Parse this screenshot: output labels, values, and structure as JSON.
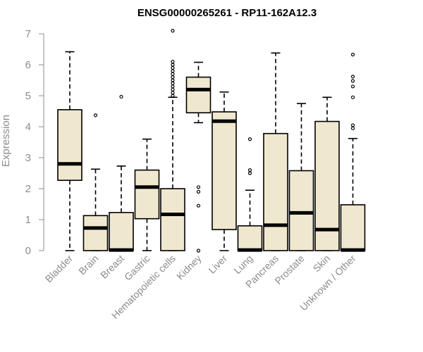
{
  "chart_data": {
    "type": "boxplot",
    "title": "ENSG00000265261 - RP11-162A12.3",
    "xlabel": "",
    "ylabel": "Expression",
    "ylim": [
      0,
      7
    ],
    "yticks": [
      0,
      1,
      2,
      3,
      4,
      5,
      6,
      7
    ],
    "box_color": "#efe8cf",
    "categories": [
      "Bladder",
      "Brain",
      "Breast",
      "Gastric",
      "Hematopoietic cells",
      "Kidney",
      "Liver",
      "Lung",
      "Pancreas",
      "Prostate",
      "Skin",
      "Unknown / Other"
    ],
    "boxes": [
      {
        "min": 0,
        "q1": 2.27,
        "median": 2.8,
        "q3": 4.55,
        "max": 6.42,
        "outliers": []
      },
      {
        "min": 0,
        "q1": 0,
        "median": 0.73,
        "q3": 1.13,
        "max": 2.63,
        "outliers": [
          4.37
        ]
      },
      {
        "min": 0,
        "q1": 0,
        "median": 0.02,
        "q3": 1.23,
        "max": 2.73,
        "outliers": [
          4.97
        ]
      },
      {
        "min": 0,
        "q1": 1.03,
        "median": 2.05,
        "q3": 2.6,
        "max": 3.6,
        "outliers": []
      },
      {
        "min": 0,
        "q1": 0,
        "median": 1.17,
        "q3": 2.0,
        "max": 4.95,
        "outliers": [
          5.0,
          5.1,
          5.2,
          5.3,
          5.4,
          5.5,
          5.6,
          5.7,
          5.8,
          5.9,
          6.0,
          6.1,
          7.1
        ]
      },
      {
        "min": 4.13,
        "q1": 4.45,
        "median": 5.2,
        "q3": 5.6,
        "max": 6.08,
        "outliers": [
          2.05,
          1.9,
          1.45,
          0
        ]
      },
      {
        "min": 0,
        "q1": 0.68,
        "median": 4.18,
        "q3": 4.48,
        "max": 5.12,
        "outliers": []
      },
      {
        "min": 0,
        "q1": 0,
        "median": 0.02,
        "q3": 0.8,
        "max": 1.95,
        "outliers": [
          3.6,
          2.6,
          2.5
        ]
      },
      {
        "min": 0,
        "q1": 0,
        "median": 0.82,
        "q3": 3.78,
        "max": 6.38,
        "outliers": []
      },
      {
        "min": 0,
        "q1": 0,
        "median": 1.22,
        "q3": 2.58,
        "max": 4.75,
        "outliers": []
      },
      {
        "min": 0,
        "q1": 0,
        "median": 0.68,
        "q3": 4.17,
        "max": 4.95,
        "outliers": []
      },
      {
        "min": 0,
        "q1": 0,
        "median": 0.02,
        "q3": 1.48,
        "max": 3.62,
        "outliers": [
          6.33,
          5.62,
          5.48,
          5.3,
          4.95,
          4.05,
          3.95
        ]
      }
    ]
  }
}
